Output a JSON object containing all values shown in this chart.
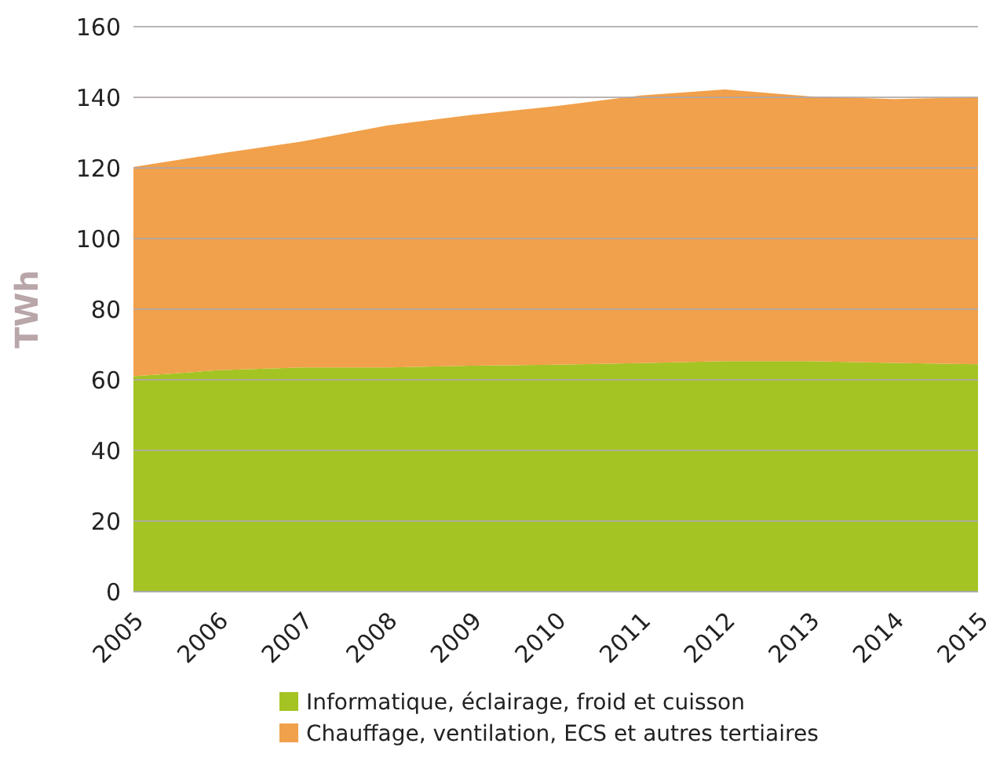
{
  "chart_data": {
    "type": "area",
    "stacked": true,
    "ylabel": "TWh",
    "categories": [
      "2005",
      "2006",
      "2007",
      "2008",
      "2009",
      "2010",
      "2011",
      "2012",
      "2013",
      "2014",
      "2015"
    ],
    "series": [
      {
        "name": "Informatique, éclairage, froid et cuisson",
        "color": "#a4c423",
        "values": [
          61,
          62.7,
          63.5,
          63.5,
          64,
          64.3,
          64.7,
          65.3,
          65.3,
          64.8,
          64.4
        ]
      },
      {
        "name": "Chauffage, ventilation, ECS et autres tertiaires",
        "color": "#f1a04b",
        "values": [
          59.3,
          61.3,
          64,
          68.5,
          71,
          73.2,
          75.8,
          76.9,
          75,
          74.7,
          75.6
        ]
      }
    ],
    "ylim": [
      0,
      160
    ],
    "yticks": [
      0,
      20,
      40,
      60,
      80,
      100,
      120,
      140,
      160
    ],
    "grid": "y",
    "legend": "bottom"
  }
}
